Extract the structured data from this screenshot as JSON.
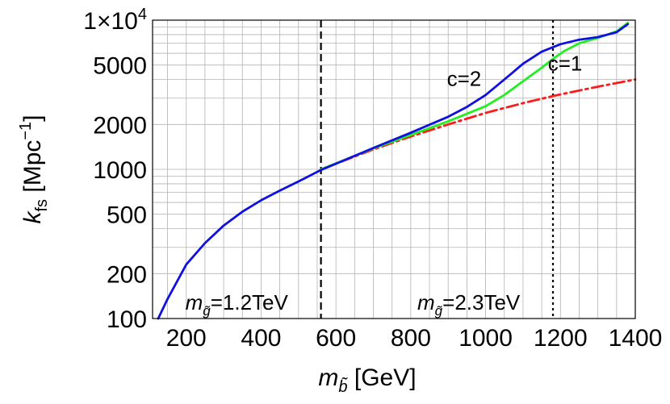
{
  "chart_data": {
    "type": "line",
    "xlabel": {
      "base": "m",
      "subscript": "b̃",
      "unit": " [GeV]"
    },
    "ylabel": {
      "base": "k",
      "subscript": "fs",
      "unit": " [Mpc",
      "unit_sup": "−1",
      "unit_close": "]"
    },
    "xlim": [
      110,
      1400
    ],
    "ylim": [
      100,
      10000
    ],
    "y_scale": "log",
    "grid": true,
    "x_ticks": [
      {
        "value": 200,
        "label": "200"
      },
      {
        "value": 400,
        "label": "400"
      },
      {
        "value": 600,
        "label": "600"
      },
      {
        "value": 800,
        "label": "800"
      },
      {
        "value": 1000,
        "label": "1000"
      },
      {
        "value": 1200,
        "label": "1200"
      },
      {
        "value": 1400,
        "label": "1400"
      }
    ],
    "y_ticks": [
      {
        "value": 100,
        "label": "100"
      },
      {
        "value": 200,
        "label": "200"
      },
      {
        "value": 500,
        "label": "500"
      },
      {
        "value": 1000,
        "label": "1000"
      },
      {
        "value": 2000,
        "label": "2000"
      },
      {
        "value": 5000,
        "label": "5000"
      },
      {
        "value": 10000,
        "label": "1×10",
        "sup": "4"
      }
    ],
    "series": [
      {
        "color": "#ff1a1a",
        "style": "dashdot",
        "x": [
          560,
          700,
          800,
          900,
          1000,
          1100,
          1180,
          1250,
          1300,
          1350,
          1400
        ],
        "y": [
          1000,
          1360,
          1660,
          2000,
          2390,
          2780,
          3100,
          3380,
          3580,
          3790,
          4000
        ]
      },
      {
        "color": "#22ee22",
        "style": "solid",
        "x": [
          560,
          700,
          800,
          900,
          1000,
          1050,
          1100,
          1150,
          1180,
          1210,
          1250,
          1300,
          1350,
          1380
        ],
        "y": [
          1000,
          1380,
          1700,
          2100,
          2650,
          3150,
          3900,
          4800,
          5500,
          6200,
          7000,
          7600,
          8400,
          9600
        ]
      },
      {
        "color": "#1010e0",
        "style": "solid",
        "x": [
          125,
          150,
          200,
          250,
          300,
          350,
          400,
          450,
          500,
          560,
          600,
          700,
          800,
          900,
          950,
          1000,
          1050,
          1100,
          1150,
          1200,
          1250,
          1300,
          1350,
          1380
        ],
        "y": [
          100,
          135,
          230,
          320,
          420,
          520,
          620,
          720,
          830,
          990,
          1090,
          1390,
          1760,
          2250,
          2620,
          3150,
          4000,
          5100,
          6150,
          6900,
          7400,
          7700,
          8300,
          9400
        ]
      }
    ],
    "vlines": [
      {
        "x": 560,
        "style": "dashed",
        "label": {
          "base": "m",
          "subscript": "g̃",
          "text": "=1.2TeV"
        }
      },
      {
        "x": 1180,
        "style": "dotted",
        "label": {
          "base": "m",
          "subscript": "g̃",
          "text": "=2.3TeV"
        }
      }
    ],
    "annotations": [
      {
        "text": "c=2",
        "x": 1000,
        "y": 4100
      },
      {
        "text": "c=1",
        "x": 1270,
        "y": 5200
      }
    ]
  }
}
